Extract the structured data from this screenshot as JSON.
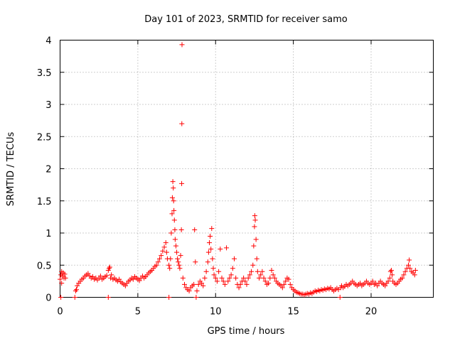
{
  "chart_data": {
    "type": "scatter",
    "title": "Day 101 of 2023, SRMTID for receiver samo",
    "xlabel": "GPS time / hours",
    "ylabel": "SRMTID / TECUs",
    "xlim": [
      0,
      24
    ],
    "ylim": [
      0,
      4
    ],
    "x_ticks": [
      0,
      5,
      10,
      15,
      20
    ],
    "x_tick_labels": [
      "0",
      "5",
      "10",
      "15",
      "20"
    ],
    "y_ticks": [
      0,
      0.5,
      1,
      1.5,
      2,
      2.5,
      3,
      3.5,
      4
    ],
    "y_tick_labels": [
      "0",
      "0.5",
      "1",
      "1.5",
      "2",
      "2.5",
      "3",
      "3.5",
      "4"
    ],
    "grid": true,
    "marker": "plus",
    "color": "#ff0000",
    "series": [
      {
        "name": "samo",
        "points": [
          [
            0.0,
            0.28
          ],
          [
            0.05,
            0.35
          ],
          [
            0.1,
            0.4
          ],
          [
            0.15,
            0.33
          ],
          [
            0.2,
            0.38
          ],
          [
            0.25,
            0.3
          ],
          [
            0.3,
            0.36
          ],
          [
            0.35,
            0.3
          ],
          [
            0.05,
            0.0
          ],
          [
            0.1,
            0.22
          ],
          [
            0.95,
            0.0
          ],
          [
            1.0,
            0.1
          ],
          [
            1.05,
            0.12
          ],
          [
            1.1,
            0.18
          ],
          [
            1.2,
            0.22
          ],
          [
            1.3,
            0.25
          ],
          [
            1.4,
            0.28
          ],
          [
            1.5,
            0.3
          ],
          [
            1.6,
            0.33
          ],
          [
            1.7,
            0.35
          ],
          [
            1.8,
            0.37
          ],
          [
            1.9,
            0.33
          ],
          [
            2.0,
            0.3
          ],
          [
            2.1,
            0.32
          ],
          [
            2.2,
            0.28
          ],
          [
            2.3,
            0.3
          ],
          [
            2.4,
            0.27
          ],
          [
            2.5,
            0.3
          ],
          [
            2.6,
            0.33
          ],
          [
            2.7,
            0.28
          ],
          [
            2.8,
            0.3
          ],
          [
            2.9,
            0.32
          ],
          [
            3.0,
            0.34
          ],
          [
            3.1,
            0.42
          ],
          [
            3.15,
            0.45
          ],
          [
            3.2,
            0.47
          ],
          [
            3.25,
            0.3
          ],
          [
            3.3,
            0.35
          ],
          [
            3.1,
            0.0
          ],
          [
            3.4,
            0.28
          ],
          [
            3.5,
            0.3
          ],
          [
            3.6,
            0.27
          ],
          [
            3.7,
            0.25
          ],
          [
            3.8,
            0.28
          ],
          [
            3.9,
            0.24
          ],
          [
            4.0,
            0.22
          ],
          [
            4.1,
            0.2
          ],
          [
            4.2,
            0.18
          ],
          [
            4.3,
            0.22
          ],
          [
            4.4,
            0.25
          ],
          [
            4.5,
            0.27
          ],
          [
            4.6,
            0.3
          ],
          [
            4.7,
            0.28
          ],
          [
            4.8,
            0.32
          ],
          [
            4.9,
            0.3
          ],
          [
            5.0,
            0.28
          ],
          [
            5.1,
            0.26
          ],
          [
            5.2,
            0.3
          ],
          [
            5.3,
            0.33
          ],
          [
            5.4,
            0.3
          ],
          [
            5.5,
            0.32
          ],
          [
            5.6,
            0.35
          ],
          [
            5.7,
            0.38
          ],
          [
            5.8,
            0.4
          ],
          [
            5.9,
            0.42
          ],
          [
            6.0,
            0.45
          ],
          [
            6.1,
            0.48
          ],
          [
            6.2,
            0.5
          ],
          [
            6.3,
            0.55
          ],
          [
            6.4,
            0.6
          ],
          [
            6.5,
            0.65
          ],
          [
            6.6,
            0.72
          ],
          [
            6.7,
            0.78
          ],
          [
            6.8,
            0.85
          ],
          [
            6.85,
            0.7
          ],
          [
            6.9,
            0.6
          ],
          [
            7.0,
            0.5
          ],
          [
            7.05,
            0.45
          ],
          [
            7.0,
            0.0
          ],
          [
            7.1,
            0.6
          ],
          [
            7.15,
            1.0
          ],
          [
            7.2,
            1.3
          ],
          [
            7.22,
            1.55
          ],
          [
            7.25,
            1.8
          ],
          [
            7.28,
            1.7
          ],
          [
            7.3,
            1.5
          ],
          [
            7.32,
            1.35
          ],
          [
            7.35,
            1.2
          ],
          [
            7.38,
            1.05
          ],
          [
            7.4,
            0.9
          ],
          [
            7.45,
            0.8
          ],
          [
            7.5,
            0.7
          ],
          [
            7.55,
            0.6
          ],
          [
            7.6,
            0.55
          ],
          [
            7.65,
            0.5
          ],
          [
            7.7,
            0.45
          ],
          [
            7.75,
            0.65
          ],
          [
            7.8,
            1.05
          ],
          [
            7.82,
            1.77
          ],
          [
            7.83,
            2.7
          ],
          [
            7.84,
            3.93
          ],
          [
            7.9,
            0.3
          ],
          [
            8.0,
            0.2
          ],
          [
            8.1,
            0.15
          ],
          [
            8.2,
            0.12
          ],
          [
            8.3,
            0.1
          ],
          [
            8.4,
            0.15
          ],
          [
            8.5,
            0.18
          ],
          [
            8.6,
            0.2
          ],
          [
            8.65,
            1.05
          ],
          [
            8.7,
            0.55
          ],
          [
            8.75,
            0.0
          ],
          [
            8.8,
            0.1
          ],
          [
            8.9,
            0.2
          ],
          [
            9.0,
            0.25
          ],
          [
            9.1,
            0.22
          ],
          [
            9.2,
            0.18
          ],
          [
            9.3,
            0.3
          ],
          [
            9.4,
            0.4
          ],
          [
            9.5,
            0.55
          ],
          [
            9.55,
            0.7
          ],
          [
            9.6,
            0.85
          ],
          [
            9.65,
            0.95
          ],
          [
            9.7,
            0.75
          ],
          [
            9.75,
            1.07
          ],
          [
            9.8,
            0.6
          ],
          [
            9.85,
            0.45
          ],
          [
            9.9,
            0.35
          ],
          [
            10.0,
            0.3
          ],
          [
            10.1,
            0.25
          ],
          [
            10.2,
            0.4
          ],
          [
            10.3,
            0.75
          ],
          [
            10.4,
            0.3
          ],
          [
            10.5,
            0.25
          ],
          [
            10.6,
            0.2
          ],
          [
            10.7,
            0.77
          ],
          [
            10.8,
            0.25
          ],
          [
            10.9,
            0.3
          ],
          [
            11.0,
            0.35
          ],
          [
            11.1,
            0.45
          ],
          [
            11.2,
            0.6
          ],
          [
            11.3,
            0.3
          ],
          [
            11.4,
            0.2
          ],
          [
            11.5,
            0.15
          ],
          [
            11.6,
            0.2
          ],
          [
            11.7,
            0.25
          ],
          [
            11.8,
            0.3
          ],
          [
            11.9,
            0.25
          ],
          [
            12.0,
            0.2
          ],
          [
            12.1,
            0.3
          ],
          [
            12.2,
            0.35
          ],
          [
            12.3,
            0.4
          ],
          [
            12.4,
            0.5
          ],
          [
            12.45,
            0.8
          ],
          [
            12.5,
            1.1
          ],
          [
            12.52,
            1.27
          ],
          [
            12.55,
            1.2
          ],
          [
            12.6,
            0.9
          ],
          [
            12.65,
            0.6
          ],
          [
            12.7,
            0.4
          ],
          [
            12.8,
            0.3
          ],
          [
            12.9,
            0.35
          ],
          [
            13.0,
            0.4
          ],
          [
            13.1,
            0.3
          ],
          [
            13.2,
            0.25
          ],
          [
            13.3,
            0.2
          ],
          [
            13.4,
            0.22
          ],
          [
            13.5,
            0.3
          ],
          [
            13.6,
            0.42
          ],
          [
            13.7,
            0.35
          ],
          [
            13.8,
            0.3
          ],
          [
            13.9,
            0.25
          ],
          [
            14.0,
            0.22
          ],
          [
            14.1,
            0.2
          ],
          [
            14.2,
            0.18
          ],
          [
            14.3,
            0.15
          ],
          [
            14.4,
            0.2
          ],
          [
            14.5,
            0.25
          ],
          [
            14.6,
            0.3
          ],
          [
            14.7,
            0.28
          ],
          [
            14.8,
            0.2
          ],
          [
            14.9,
            0.15
          ],
          [
            15.0,
            0.12
          ],
          [
            15.1,
            0.1
          ],
          [
            15.2,
            0.08
          ],
          [
            15.3,
            0.07
          ],
          [
            15.4,
            0.06
          ],
          [
            15.5,
            0.05
          ],
          [
            15.6,
            0.05
          ],
          [
            15.7,
            0.04
          ],
          [
            15.8,
            0.05
          ],
          [
            15.9,
            0.06
          ],
          [
            16.0,
            0.05
          ],
          [
            16.1,
            0.07
          ],
          [
            16.2,
            0.06
          ],
          [
            16.3,
            0.08
          ],
          [
            16.4,
            0.1
          ],
          [
            16.5,
            0.09
          ],
          [
            16.6,
            0.11
          ],
          [
            16.7,
            0.1
          ],
          [
            16.8,
            0.12
          ],
          [
            16.9,
            0.11
          ],
          [
            17.0,
            0.13
          ],
          [
            17.1,
            0.12
          ],
          [
            17.2,
            0.14
          ],
          [
            17.3,
            0.13
          ],
          [
            17.4,
            0.15
          ],
          [
            17.5,
            0.12
          ],
          [
            17.6,
            0.1
          ],
          [
            17.7,
            0.12
          ],
          [
            17.8,
            0.14
          ],
          [
            17.9,
            0.12
          ],
          [
            18.0,
            0.0
          ],
          [
            18.05,
            0.15
          ],
          [
            18.1,
            0.18
          ],
          [
            18.2,
            0.15
          ],
          [
            18.3,
            0.17
          ],
          [
            18.4,
            0.2
          ],
          [
            18.5,
            0.18
          ],
          [
            18.6,
            0.2
          ],
          [
            18.7,
            0.22
          ],
          [
            18.8,
            0.25
          ],
          [
            18.9,
            0.22
          ],
          [
            19.0,
            0.2
          ],
          [
            19.1,
            0.18
          ],
          [
            19.2,
            0.2
          ],
          [
            19.3,
            0.22
          ],
          [
            19.4,
            0.18
          ],
          [
            19.5,
            0.2
          ],
          [
            19.6,
            0.22
          ],
          [
            19.7,
            0.25
          ],
          [
            19.8,
            0.22
          ],
          [
            19.9,
            0.2
          ],
          [
            20.0,
            0.22
          ],
          [
            20.1,
            0.25
          ],
          [
            20.2,
            0.2
          ],
          [
            20.3,
            0.22
          ],
          [
            20.4,
            0.18
          ],
          [
            20.5,
            0.22
          ],
          [
            20.6,
            0.25
          ],
          [
            20.7,
            0.22
          ],
          [
            20.8,
            0.2
          ],
          [
            20.9,
            0.18
          ],
          [
            21.0,
            0.22
          ],
          [
            21.1,
            0.25
          ],
          [
            21.2,
            0.3
          ],
          [
            21.25,
            0.4
          ],
          [
            21.3,
            0.42
          ],
          [
            21.35,
            0.35
          ],
          [
            21.4,
            0.25
          ],
          [
            21.5,
            0.22
          ],
          [
            21.6,
            0.2
          ],
          [
            21.7,
            0.22
          ],
          [
            21.8,
            0.25
          ],
          [
            21.9,
            0.28
          ],
          [
            22.0,
            0.3
          ],
          [
            22.1,
            0.35
          ],
          [
            22.2,
            0.4
          ],
          [
            22.3,
            0.45
          ],
          [
            22.4,
            0.5
          ],
          [
            22.45,
            0.58
          ],
          [
            22.5,
            0.45
          ],
          [
            22.6,
            0.4
          ],
          [
            22.7,
            0.38
          ],
          [
            22.8,
            0.35
          ],
          [
            22.85,
            0.42
          ]
        ]
      }
    ]
  }
}
